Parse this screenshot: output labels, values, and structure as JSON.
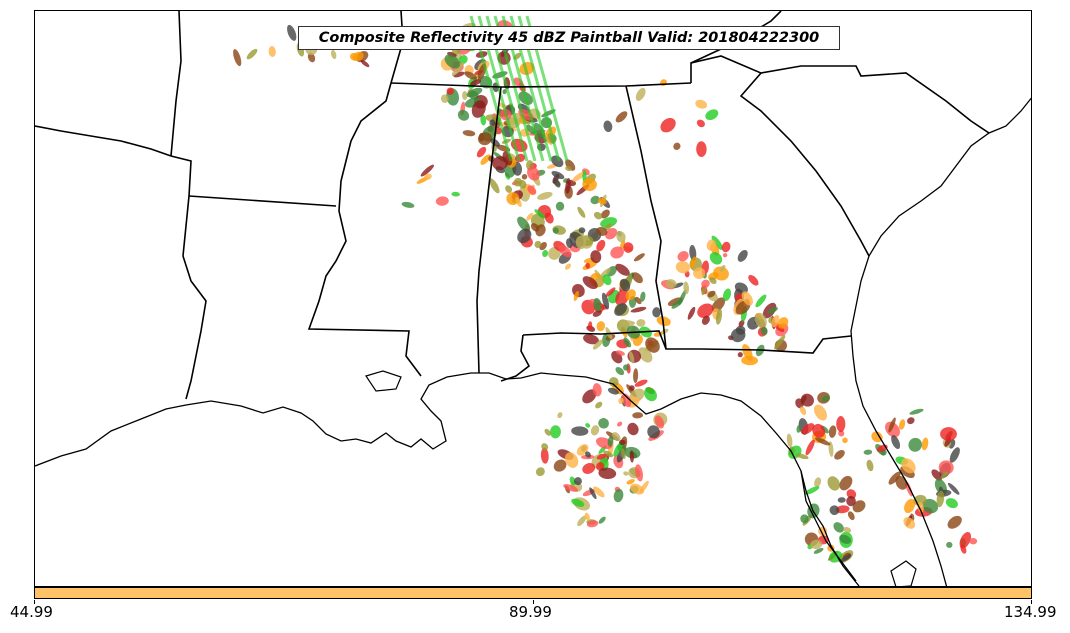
{
  "title": "Composite Reflectivity 45 dBZ Paintball Valid: 201804222300",
  "colorbar": {
    "color": "#ffc266",
    "ticks": [
      "44.99",
      "89.99",
      "134.99"
    ]
  },
  "colors": {
    "orange": "#ff9900",
    "light_orange": "#ffb347",
    "red": "#ee2222",
    "pink_red": "#ff5555",
    "dark_red": "#8b1a1a",
    "dark_gray": "#444444",
    "olive": "#9a9a33",
    "khaki": "#bdb05a",
    "green": "#22cc22",
    "dark_green": "#3b8a3b",
    "brown": "#8b4513"
  }
}
